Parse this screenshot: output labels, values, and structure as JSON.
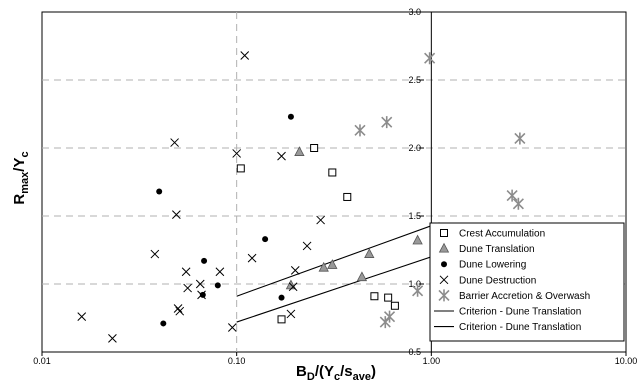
{
  "chart_data": {
    "type": "scatter",
    "xscale": "log",
    "xlim": [
      0.01,
      10
    ],
    "ylim": [
      0.5,
      3.0
    ],
    "xticks": [
      "0.01",
      "0.10",
      "1.00",
      "10.00"
    ],
    "xticks_vals": [
      0.01,
      0.1,
      1,
      10
    ],
    "yticks": [
      "0.5",
      "1.0",
      "1.5",
      "2.0",
      "2.5",
      "3.0"
    ],
    "yticks_vals": [
      0.5,
      1.0,
      1.5,
      2.0,
      2.5,
      3.0
    ],
    "grid": "dashed-horizontal",
    "legend_position": "bottom-right",
    "series": [
      {
        "name": "Crest Accumulation",
        "marker": "open-square",
        "x": [
          0.105,
          0.17,
          0.25,
          0.31,
          0.37,
          0.51,
          0.6,
          0.65
        ],
        "y": [
          1.85,
          0.74,
          2.0,
          1.82,
          1.64,
          0.91,
          0.9,
          0.84
        ]
      },
      {
        "name": "Dune Translation",
        "marker": "gray-triangle",
        "x": [
          0.19,
          0.21,
          0.28,
          0.31,
          0.44,
          0.48,
          0.85
        ],
        "y": [
          0.99,
          1.97,
          1.12,
          1.14,
          1.05,
          1.22,
          1.32
        ]
      },
      {
        "name": "Dune Lowering",
        "marker": "filled-circle",
        "x": [
          0.04,
          0.042,
          0.067,
          0.068,
          0.08,
          0.14,
          0.17,
          0.19
        ],
        "y": [
          1.68,
          0.71,
          0.92,
          1.17,
          0.99,
          1.33,
          0.9,
          2.23
        ]
      },
      {
        "name": "Dune Destruction",
        "marker": "x",
        "x": [
          0.016,
          0.023,
          0.038,
          0.048,
          0.049,
          0.05,
          0.051,
          0.055,
          0.056,
          0.065,
          0.066,
          0.082,
          0.095,
          0.1,
          0.11,
          0.12,
          0.17,
          0.19,
          0.195,
          0.2,
          0.23,
          0.27
        ],
        "y": [
          0.76,
          0.6,
          1.22,
          2.04,
          1.51,
          0.82,
          0.8,
          1.09,
          0.97,
          1.0,
          0.92,
          1.09,
          0.68,
          1.96,
          2.68,
          1.19,
          1.94,
          0.78,
          0.98,
          1.1,
          1.28,
          1.47
        ]
      },
      {
        "name": "Barrier Accretion & Overwash",
        "marker": "asterisk",
        "x": [
          0.43,
          0.59,
          0.61,
          0.58,
          0.85,
          0.98,
          2.6,
          2.8,
          2.85
        ],
        "y": [
          2.13,
          2.19,
          0.76,
          0.72,
          0.95,
          2.66,
          1.65,
          1.59,
          2.07
        ]
      }
    ],
    "lines": [
      {
        "name": "Criterion - Dune Translation",
        "x": [
          0.1,
          1.1
        ],
        "y": [
          0.91,
          1.45
        ]
      },
      {
        "name": "Criterion - Dune Translation",
        "x": [
          0.1,
          1.1
        ],
        "y": [
          0.72,
          1.22
        ]
      }
    ]
  },
  "labels": {
    "ylabel_main": "R",
    "ylabel_sub1": "max",
    "ylabel_mid": "/Y",
    "ylabel_sub2": "c",
    "xlabel_main": "B",
    "xlabel_sub1": "D",
    "xlabel_mid1": "/(Y",
    "xlabel_sub2": "c",
    "xlabel_mid2": "/s",
    "xlabel_sub3": "ave",
    "xlabel_end": ")"
  },
  "colors": {
    "grid": "#b0b0b0",
    "triangle_fill": "#999999",
    "asterisk": "#8c8c8c",
    "marker": "#000000"
  }
}
